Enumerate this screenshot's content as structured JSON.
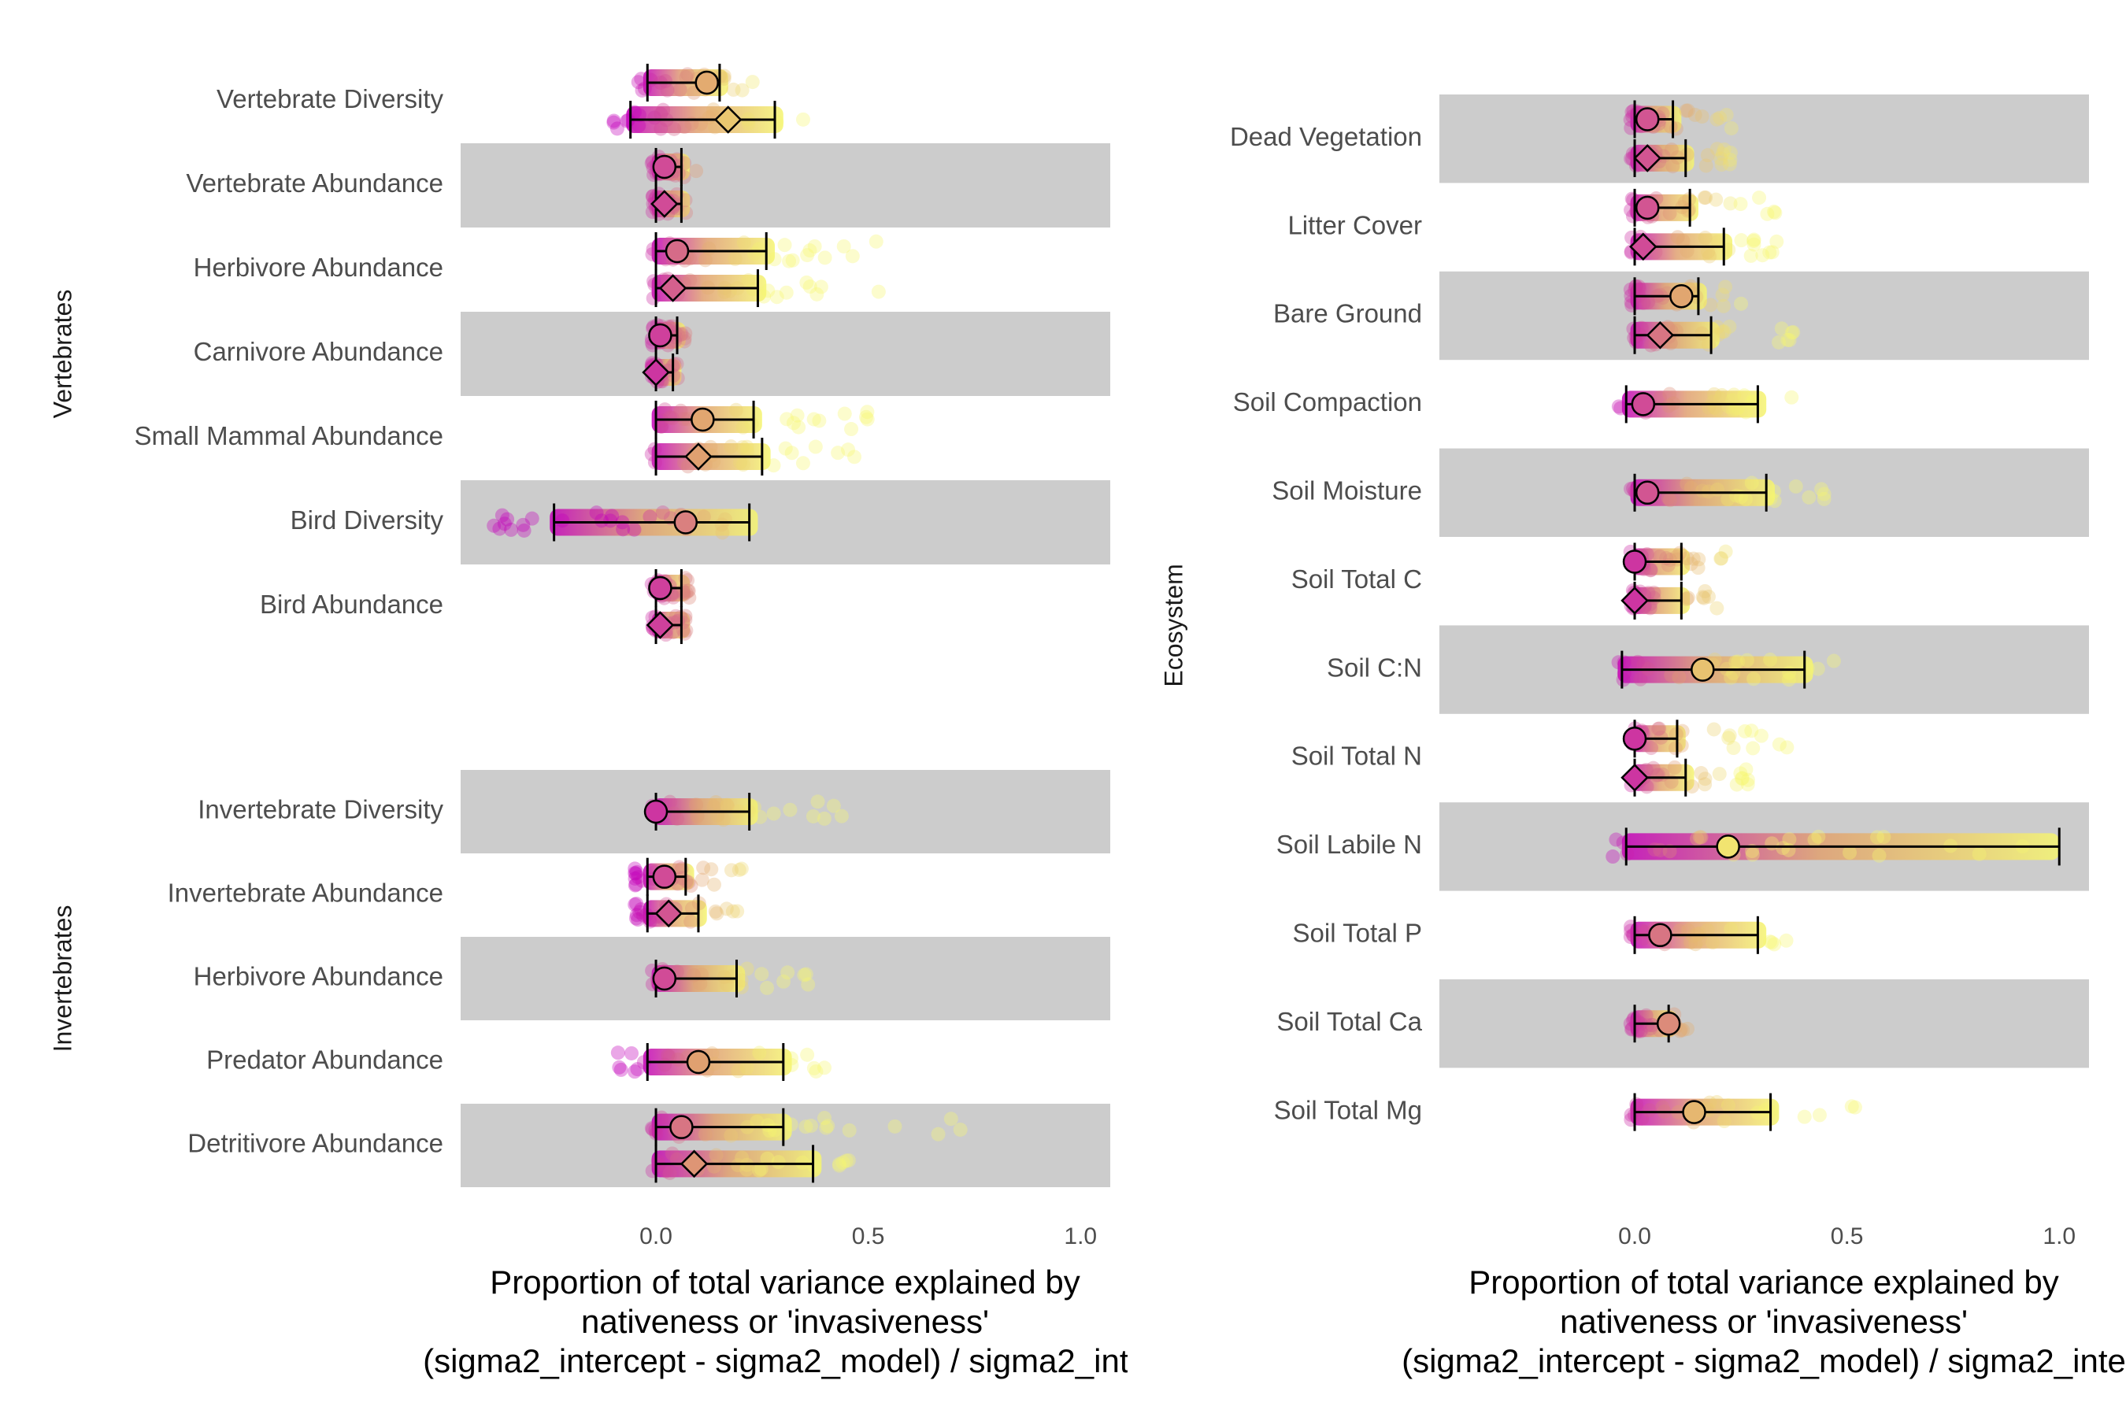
{
  "chart_data": [
    {
      "type": "dotplot",
      "xlabel_lines": [
        "Proportion of total variance explained by",
        "nativeness or 'invasiveness'",
        "(sigma2_intercept - sigma2_model) / sigma2_inte"
      ],
      "xlim": [
        -0.46,
        1.07
      ],
      "xticks": [
        "0.0",
        "0.5",
        "1.0"
      ],
      "xtick_values": [
        0,
        0.5,
        1.0
      ],
      "colors": {
        "low": "#c300b9",
        "mid": "#e0a070",
        "high": "#f5f570",
        "band": "#cccccc"
      },
      "panels": [
        {
          "strip": "Vertebrates",
          "rows": [
            {
              "label": "Vertebrate Diversity",
              "band": false,
              "estimates": [
                {
                  "shape": "circle",
                  "value": 0.12,
                  "lo": -0.02,
                  "hi": 0.15,
                  "pmin": -0.05,
                  "pmax": 0.24
                },
                {
                  "shape": "diamond",
                  "value": 0.17,
                  "lo": -0.06,
                  "hi": 0.28,
                  "pmin": -0.1,
                  "pmax": 0.35
                }
              ]
            },
            {
              "label": "Vertebrate Abundance",
              "band": true,
              "estimates": [
                {
                  "shape": "circle",
                  "value": 0.02,
                  "lo": 0.0,
                  "hi": 0.06,
                  "pmin": -0.01,
                  "pmax": 0.1
                },
                {
                  "shape": "diamond",
                  "value": 0.02,
                  "lo": 0.0,
                  "hi": 0.06,
                  "pmin": -0.01,
                  "pmax": 0.08
                }
              ]
            },
            {
              "label": "Herbivore Abundance",
              "band": false,
              "estimates": [
                {
                  "shape": "circle",
                  "value": 0.05,
                  "lo": 0.0,
                  "hi": 0.26,
                  "pmin": -0.01,
                  "pmax": 0.54
                },
                {
                  "shape": "diamond",
                  "value": 0.04,
                  "lo": 0.0,
                  "hi": 0.24,
                  "pmin": -0.01,
                  "pmax": 0.55
                }
              ]
            },
            {
              "label": "Carnivore Abundance",
              "band": true,
              "estimates": [
                {
                  "shape": "circle",
                  "value": 0.01,
                  "lo": 0.0,
                  "hi": 0.05,
                  "pmin": -0.01,
                  "pmax": 0.07
                },
                {
                  "shape": "diamond",
                  "value": 0.0,
                  "lo": 0.0,
                  "hi": 0.04,
                  "pmin": -0.01,
                  "pmax": 0.06
                }
              ]
            },
            {
              "label": "Small Mammal Abundance",
              "band": false,
              "estimates": [
                {
                  "shape": "circle",
                  "value": 0.11,
                  "lo": 0.0,
                  "hi": 0.23,
                  "pmin": -0.01,
                  "pmax": 0.53
                },
                {
                  "shape": "diamond",
                  "value": 0.1,
                  "lo": 0.0,
                  "hi": 0.25,
                  "pmin": -0.01,
                  "pmax": 0.5
                }
              ]
            },
            {
              "label": "Bird Diversity",
              "band": true,
              "estimates": [
                {
                  "shape": "circle",
                  "value": 0.07,
                  "lo": -0.24,
                  "hi": 0.22,
                  "pmin": -0.4,
                  "pmax": 0.27
                }
              ]
            },
            {
              "label": "Bird Abundance",
              "band": false,
              "estimates": [
                {
                  "shape": "circle",
                  "value": 0.01,
                  "lo": 0.0,
                  "hi": 0.06,
                  "pmin": -0.01,
                  "pmax": 0.08
                },
                {
                  "shape": "diamond",
                  "value": 0.01,
                  "lo": 0.0,
                  "hi": 0.06,
                  "pmin": -0.01,
                  "pmax": 0.08
                }
              ]
            }
          ]
        },
        {
          "strip": "Invertebrates",
          "rows": [
            {
              "label": "Invertebrate Diversity",
              "band": true,
              "estimates": [
                {
                  "shape": "circle",
                  "value": 0.0,
                  "lo": 0.0,
                  "hi": 0.22,
                  "pmin": -0.01,
                  "pmax": 0.46
                }
              ]
            },
            {
              "label": "Invertebrate Abundance",
              "band": false,
              "estimates": [
                {
                  "shape": "circle",
                  "value": 0.02,
                  "lo": -0.02,
                  "hi": 0.07,
                  "pmin": -0.05,
                  "pmax": 0.25
                },
                {
                  "shape": "diamond",
                  "value": 0.03,
                  "lo": -0.02,
                  "hi": 0.1,
                  "pmin": -0.05,
                  "pmax": 0.2
                }
              ]
            },
            {
              "label": "Herbivore Abundance",
              "band": true,
              "estimates": [
                {
                  "shape": "circle",
                  "value": 0.02,
                  "lo": 0.0,
                  "hi": 0.19,
                  "pmin": -0.01,
                  "pmax": 0.4
                }
              ]
            },
            {
              "label": "Predator Abundance",
              "band": false,
              "estimates": [
                {
                  "shape": "circle",
                  "value": 0.1,
                  "lo": -0.02,
                  "hi": 0.3,
                  "pmin": -0.09,
                  "pmax": 0.4
                }
              ]
            },
            {
              "label": "Detritivore Abundance",
              "band": true,
              "estimates": [
                {
                  "shape": "circle",
                  "value": 0.06,
                  "lo": 0.0,
                  "hi": 0.3,
                  "pmin": -0.01,
                  "pmax": 0.77
                },
                {
                  "shape": "diamond",
                  "value": 0.09,
                  "lo": 0.0,
                  "hi": 0.37,
                  "pmin": -0.01,
                  "pmax": 0.51
                }
              ]
            }
          ]
        },
        {
          "strip": "Ecosystem",
          "rows": [
            {
              "label": "Dead Vegetation",
              "band": true,
              "estimates": [
                {
                  "shape": "circle",
                  "value": 0.03,
                  "lo": 0.0,
                  "hi": 0.09,
                  "pmin": -0.01,
                  "pmax": 0.24
                },
                {
                  "shape": "diamond",
                  "value": 0.03,
                  "lo": 0.0,
                  "hi": 0.12,
                  "pmin": -0.01,
                  "pmax": 0.24
                }
              ]
            },
            {
              "label": "Litter Cover",
              "band": false,
              "estimates": [
                {
                  "shape": "circle",
                  "value": 0.03,
                  "lo": 0.0,
                  "hi": 0.13,
                  "pmin": -0.01,
                  "pmax": 0.36
                },
                {
                  "shape": "diamond",
                  "value": 0.02,
                  "lo": 0.0,
                  "hi": 0.21,
                  "pmin": -0.01,
                  "pmax": 0.38
                }
              ]
            },
            {
              "label": "Bare Ground",
              "band": true,
              "estimates": [
                {
                  "shape": "circle",
                  "value": 0.11,
                  "lo": 0.0,
                  "hi": 0.15,
                  "pmin": -0.01,
                  "pmax": 0.28
                },
                {
                  "shape": "diamond",
                  "value": 0.06,
                  "lo": 0.0,
                  "hi": 0.18,
                  "pmin": -0.01,
                  "pmax": 0.38
                }
              ]
            },
            {
              "label": "Soil Compaction",
              "band": false,
              "estimates": [
                {
                  "shape": "circle",
                  "value": 0.02,
                  "lo": -0.02,
                  "hi": 0.29,
                  "pmin": -0.05,
                  "pmax": 0.37
                }
              ]
            },
            {
              "label": "Soil Moisture",
              "band": true,
              "estimates": [
                {
                  "shape": "circle",
                  "value": 0.03,
                  "lo": 0.0,
                  "hi": 0.31,
                  "pmin": -0.01,
                  "pmax": 0.45
                }
              ]
            },
            {
              "label": "Soil Total C",
              "band": false,
              "estimates": [
                {
                  "shape": "circle",
                  "value": 0.0,
                  "lo": 0.0,
                  "hi": 0.11,
                  "pmin": -0.01,
                  "pmax": 0.22
                },
                {
                  "shape": "diamond",
                  "value": 0.0,
                  "lo": 0.0,
                  "hi": 0.11,
                  "pmin": -0.01,
                  "pmax": 0.2
                }
              ]
            },
            {
              "label": "Soil C:N",
              "band": true,
              "estimates": [
                {
                  "shape": "circle",
                  "value": 0.16,
                  "lo": -0.03,
                  "hi": 0.4,
                  "pmin": -0.06,
                  "pmax": 0.52
                }
              ]
            },
            {
              "label": "Soil Total N",
              "band": false,
              "estimates": [
                {
                  "shape": "circle",
                  "value": 0.0,
                  "lo": 0.0,
                  "hi": 0.1,
                  "pmin": -0.01,
                  "pmax": 0.38
                },
                {
                  "shape": "diamond",
                  "value": 0.0,
                  "lo": 0.0,
                  "hi": 0.12,
                  "pmin": -0.01,
                  "pmax": 0.28
                }
              ]
            },
            {
              "label": "Soil Labile N",
              "band": true,
              "estimates": [
                {
                  "shape": "circle",
                  "value": 0.22,
                  "lo": -0.02,
                  "hi": 1.0,
                  "pmin": -0.06,
                  "pmax": 1.0
                }
              ]
            },
            {
              "label": "Soil Total P",
              "band": false,
              "estimates": [
                {
                  "shape": "circle",
                  "value": 0.06,
                  "lo": 0.0,
                  "hi": 0.29,
                  "pmin": -0.01,
                  "pmax": 0.37
                }
              ]
            },
            {
              "label": "Soil Total Ca",
              "band": true,
              "estimates": [
                {
                  "shape": "circle",
                  "value": 0.08,
                  "lo": 0.0,
                  "hi": 0.08,
                  "pmin": -0.01,
                  "pmax": 0.13
                }
              ]
            },
            {
              "label": "Soil Total Mg",
              "band": false,
              "estimates": [
                {
                  "shape": "circle",
                  "value": 0.14,
                  "lo": 0.0,
                  "hi": 0.32,
                  "pmin": -0.01,
                  "pmax": 0.53
                }
              ]
            }
          ]
        }
      ]
    }
  ]
}
